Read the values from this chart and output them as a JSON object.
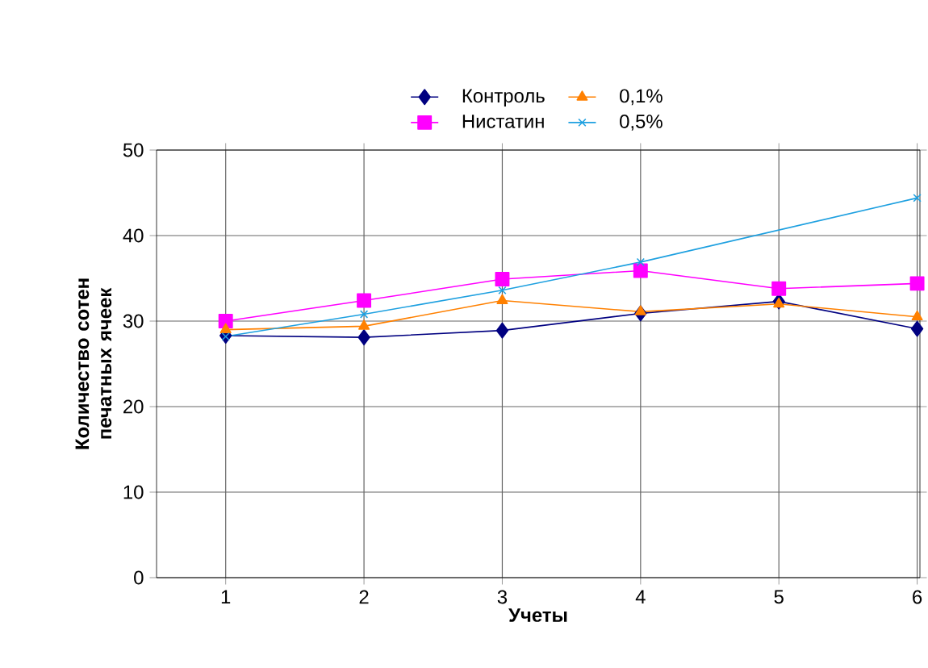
{
  "chart_data": {
    "type": "line",
    "xlabel": "Учеты",
    "ylabel": "Количество сотен печатных ячеек",
    "categories": [
      "1",
      "2",
      "3",
      "4",
      "5",
      "6"
    ],
    "series": [
      {
        "name": "Контроль",
        "color": "#000080",
        "marker": "diamond",
        "values": [
          28.3,
          28.1,
          28.9,
          30.9,
          32.3,
          29.1
        ]
      },
      {
        "name": "Нистатин",
        "color": "#ff00ff",
        "marker": "square",
        "values": [
          30.0,
          32.4,
          34.9,
          35.9,
          33.8,
          34.4
        ]
      },
      {
        "name": "0,1%",
        "color": "#ff8000",
        "marker": "triangle",
        "values": [
          29.0,
          29.4,
          32.4,
          31.1,
          32.0,
          30.5
        ]
      },
      {
        "name": "0,5%",
        "color": "#1ea0e0",
        "marker": "cross",
        "values": [
          28.2,
          30.8,
          33.6,
          36.9,
          null,
          44.4
        ]
      }
    ],
    "ylim": [
      0,
      50
    ],
    "yticks": [
      0,
      10,
      20,
      30,
      40,
      50
    ],
    "grid": true,
    "legend": "top"
  }
}
